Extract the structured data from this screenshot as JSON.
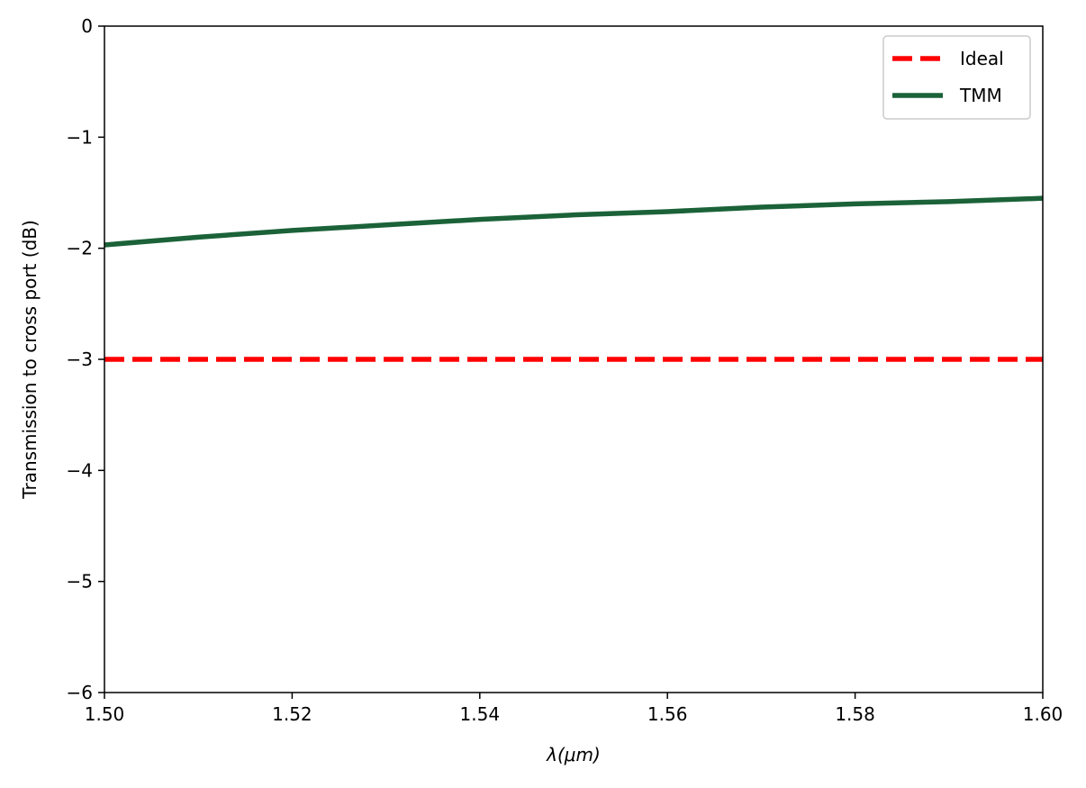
{
  "chart_data": {
    "type": "line",
    "title": "",
    "xlabel": "λ(μm)",
    "ylabel": "Transmission to cross port (dB)",
    "xlim": [
      1.5,
      1.6
    ],
    "ylim": [
      -6,
      0
    ],
    "x_ticks": [
      "1.50",
      "1.52",
      "1.54",
      "1.56",
      "1.58",
      "1.60"
    ],
    "y_ticks": [
      "0",
      "−1",
      "−2",
      "−3",
      "−4",
      "−5",
      "−6"
    ],
    "grid": false,
    "legend_position": "top-right",
    "series": [
      {
        "name": "Ideal",
        "style": "dashed",
        "color": "#ff0000",
        "x": [
          1.5,
          1.6
        ],
        "y": [
          -3.0,
          -3.0
        ]
      },
      {
        "name": "TMM",
        "style": "solid",
        "color": "#1b6238",
        "x": [
          1.5,
          1.51,
          1.52,
          1.53,
          1.54,
          1.55,
          1.56,
          1.57,
          1.58,
          1.59,
          1.6
        ],
        "y": [
          -1.97,
          -1.9,
          -1.84,
          -1.79,
          -1.74,
          -1.7,
          -1.67,
          -1.63,
          -1.6,
          -1.58,
          -1.55
        ]
      }
    ]
  }
}
